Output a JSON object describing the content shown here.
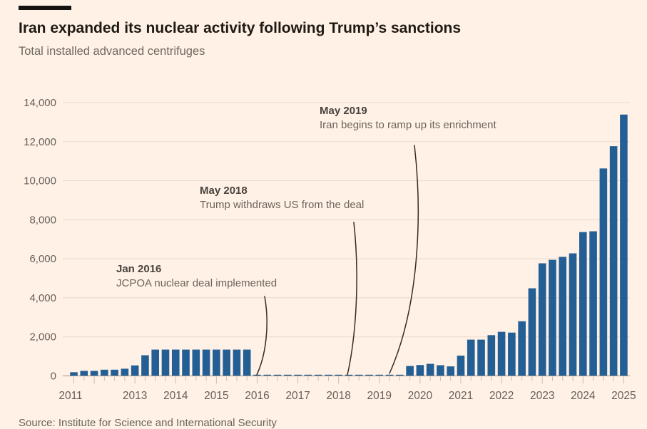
{
  "background_color": "#FFF1E5",
  "chart_data": {
    "type": "bar",
    "title": "Iran expanded its nuclear activity following Trump’s sanctions",
    "subtitle": "Total installed advanced centrifuges",
    "source": "Source: Institute for Science and International Security",
    "xlabel": "",
    "ylabel": "",
    "ylim": [
      0,
      14000
    ],
    "ytick_step": 2000,
    "ytick_labels": [
      "0",
      "2,000",
      "4,000",
      "6,000",
      "8,000",
      "10,000",
      "12,000",
      "14,000"
    ],
    "xtick_labels": [
      "2011",
      "2013",
      "2014",
      "2015",
      "2016",
      "2017",
      "2018",
      "2019",
      "2020",
      "2021",
      "2022",
      "2023",
      "2024",
      "2025"
    ],
    "grid": true,
    "legend": "none",
    "bar_color": "#235f95",
    "x": [
      "2011 Q3",
      "2011 Q4",
      "2012 Q1",
      "2012 Q2",
      "2012 Q3",
      "2012 Q4",
      "2013 Q1",
      "2013 Q2",
      "2013 Q3",
      "2013 Q4",
      "2014 Q1",
      "2014 Q2",
      "2014 Q3",
      "2014 Q4",
      "2015 Q1",
      "2015 Q2",
      "2015 Q3",
      "2015 Q4",
      "2016 Q1",
      "2016 Q2",
      "2016 Q3",
      "2016 Q4",
      "2017 Q1",
      "2017 Q2",
      "2017 Q3",
      "2017 Q4",
      "2018 Q1",
      "2018 Q2",
      "2018 Q3",
      "2018 Q4",
      "2019 Q1",
      "2019 Q2",
      "2019 Q3",
      "2019 Q4",
      "2020 Q1",
      "2020 Q2",
      "2020 Q3",
      "2020 Q4",
      "2021 Q1",
      "2021 Q2",
      "2021 Q3",
      "2021 Q4",
      "2022 Q1",
      "2022 Q2",
      "2022 Q3",
      "2022 Q4",
      "2023 Q1",
      "2023 Q2",
      "2023 Q3",
      "2023 Q4",
      "2024 Q1",
      "2024 Q2",
      "2024 Q3",
      "2024 Q4",
      "2025 Q1"
    ],
    "values": [
      170,
      240,
      240,
      300,
      300,
      350,
      520,
      1040,
      1330,
      1330,
      1330,
      1330,
      1330,
      1330,
      1330,
      1330,
      1330,
      1330,
      30,
      30,
      30,
      30,
      30,
      30,
      30,
      30,
      30,
      30,
      30,
      30,
      30,
      30,
      30,
      490,
      540,
      600,
      530,
      470,
      1020,
      1840,
      1840,
      2070,
      2240,
      2200,
      2780,
      4470,
      5750,
      5930,
      6080,
      6260,
      7350,
      7390,
      10610,
      11750,
      13370
    ],
    "annotations": [
      {
        "head": "Jan 2016",
        "body": "JCPOA nuclear deal implemented",
        "points_to": "2016 Q1"
      },
      {
        "head": "May 2018",
        "body": "Trump withdraws US from the deal",
        "points_to": "2018 Q2"
      },
      {
        "head": "May 2019",
        "body": "Iran begins to ramp up its enrichment",
        "points_to": "2019 Q2"
      }
    ]
  }
}
